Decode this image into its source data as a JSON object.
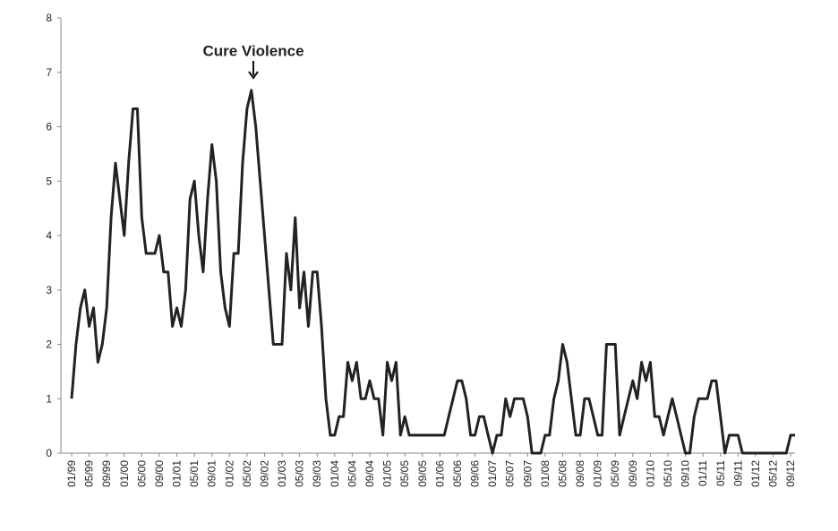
{
  "chart_data": {
    "type": "line",
    "annotation": "Cure Violence",
    "categories": [
      "01/99",
      null,
      null,
      null,
      "05/99",
      null,
      null,
      null,
      "09/99",
      null,
      null,
      null,
      "01/00",
      null,
      null,
      null,
      "05/00",
      null,
      null,
      null,
      "09/00",
      null,
      null,
      null,
      "01/01",
      null,
      null,
      null,
      "05/01",
      null,
      null,
      null,
      "09/01",
      null,
      null,
      null,
      "01/02",
      null,
      null,
      null,
      "05/02",
      null,
      null,
      null,
      "09/02",
      null,
      null,
      null,
      "01/03",
      null,
      null,
      null,
      "05/03",
      null,
      null,
      null,
      "09/03",
      null,
      null,
      null,
      "01/04",
      null,
      null,
      null,
      "05/04",
      null,
      null,
      null,
      "09/04",
      null,
      null,
      null,
      "01/05",
      null,
      null,
      null,
      "05/05",
      null,
      null,
      null,
      "09/05",
      null,
      null,
      null,
      "01/06",
      null,
      null,
      null,
      "05/06",
      null,
      null,
      null,
      "09/06",
      null,
      null,
      null,
      "01/07",
      null,
      null,
      null,
      "05/07",
      null,
      null,
      null,
      "09/07",
      null,
      null,
      null,
      "01/08",
      null,
      null,
      null,
      "05/08",
      null,
      null,
      null,
      "09/08",
      null,
      null,
      null,
      "01/09",
      null,
      null,
      null,
      "05/09",
      null,
      null,
      null,
      "09/09",
      null,
      null,
      null,
      "01/10",
      null,
      null,
      null,
      "05/10",
      null,
      null,
      null,
      "09/10",
      null,
      null,
      null,
      "01/11",
      null,
      null,
      null,
      "05/11",
      null,
      null,
      null,
      "09/11",
      null,
      null,
      null,
      "01/12",
      null,
      null,
      null,
      "05/12",
      null,
      null,
      null,
      "09/12",
      null
    ],
    "values": [
      1,
      2,
      2.67,
      3,
      2.33,
      2.67,
      1.67,
      2,
      2.67,
      4.33,
      5.33,
      4.67,
      4,
      5.33,
      6.33,
      6.33,
      4.33,
      3.67,
      3.67,
      3.67,
      4,
      3.33,
      3.33,
      2.33,
      2.67,
      2.33,
      3,
      4.67,
      5,
      4,
      3.33,
      4.67,
      5.67,
      5,
      3.33,
      2.67,
      2.33,
      3.67,
      3.67,
      5.33,
      6.33,
      6.67,
      6,
      5,
      4,
      3,
      2,
      2,
      2,
      3.67,
      3,
      4.33,
      2.67,
      3.33,
      2.33,
      3.33,
      3.33,
      2.33,
      1,
      0.33,
      0.33,
      0.67,
      0.67,
      1.67,
      1.33,
      1.67,
      1,
      1,
      1.33,
      1,
      1,
      0.33,
      1.67,
      1.33,
      1.67,
      0.33,
      0.67,
      0.33,
      0.33,
      0.33,
      0.33,
      0.33,
      0.33,
      0.33,
      0.33,
      0.33,
      0.67,
      1,
      1.33,
      1.33,
      1,
      0.33,
      0.33,
      0.67,
      0.67,
      0.33,
      0,
      0.33,
      0.33,
      1,
      0.67,
      1,
      1,
      1,
      0.67,
      0,
      0,
      0,
      0.33,
      0.33,
      1,
      1.33,
      2,
      1.67,
      1,
      0.33,
      0.33,
      1,
      1,
      0.67,
      0.33,
      0.33,
      2,
      2,
      2,
      0.33,
      0.67,
      1,
      1.33,
      1,
      1.67,
      1.33,
      1.67,
      0.67,
      0.67,
      0.33,
      0.67,
      1,
      0.67,
      0.33,
      0,
      0,
      0.67,
      1,
      1,
      1,
      1.33,
      1.33,
      0.67,
      0,
      0.33,
      0.33,
      0.33,
      0,
      0,
      0,
      0,
      0,
      0,
      0,
      0,
      0,
      0,
      0,
      0.33,
      0.33
    ],
    "color": "#222222",
    "ylim": [
      0,
      8
    ],
    "yticks": [
      0,
      1,
      2,
      3,
      4,
      5,
      6,
      7,
      8
    ],
    "grid": false
  }
}
